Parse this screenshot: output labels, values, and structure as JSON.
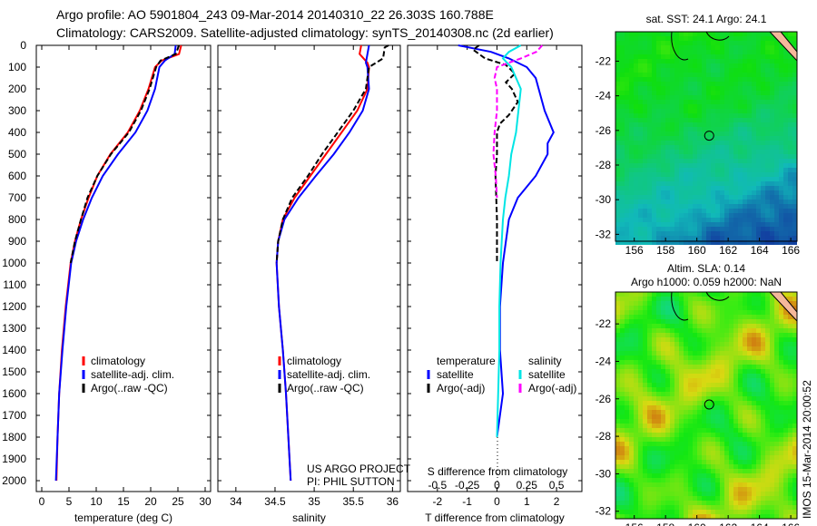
{
  "title_line1": "Argo profile: AO 5901804_243 09-Mar-2014 20140310_22 26.303S 160.788E",
  "title_line2": "Climatology: CARS2009. Satellite-adjusted climatology: synTS_20140308.nc (2d earlier)",
  "credit_line1": "US ARGO PROJECT",
  "credit_line2": "PI: PHIL SUTTON",
  "timestamp": "IMOS 15-Mar-2014 20:00:52",
  "colors": {
    "climatology": "#ff0000",
    "satellite": "#0000ff",
    "argo": "#000000",
    "sal_satellite": "#00e5e5",
    "sal_argo": "#ff00ff"
  },
  "chart_data": [
    {
      "type": "line",
      "xlabel": "temperature (deg C)",
      "ylabel": "",
      "xlim": [
        -1,
        31
      ],
      "ylim": [
        2050,
        0
      ],
      "xticks": [
        "0",
        "5",
        "10",
        "15",
        "20",
        "25",
        "30"
      ],
      "yticks": [
        "0",
        "100",
        "200",
        "300",
        "400",
        "500",
        "600",
        "700",
        "800",
        "900",
        "1000",
        "1100",
        "1200",
        "1300",
        "1400",
        "1500",
        "1600",
        "1700",
        "1800",
        "1900",
        "2000"
      ],
      "legend": [
        "climatology",
        "satellite-adj. clim.",
        "Argo(..raw -QC)"
      ],
      "series": [
        {
          "name": "climatology",
          "depth": [
            0,
            40,
            70,
            100,
            200,
            300,
            400,
            500,
            600,
            700,
            800,
            900,
            1000,
            1200,
            1400,
            1600,
            1800,
            2000
          ],
          "values": [
            25.6,
            25.2,
            22,
            20.8,
            19.6,
            18,
            15.8,
            12.6,
            10.2,
            8.6,
            7.2,
            6.1,
            5.3,
            4.4,
            3.7,
            3.2,
            2.9,
            2.7
          ]
        },
        {
          "name": "satellite-adj. clim.",
          "depth": [
            0,
            40,
            70,
            100,
            200,
            300,
            400,
            500,
            600,
            700,
            800,
            900,
            1000,
            1200,
            1400,
            1600,
            1800,
            2000
          ],
          "values": [
            24.6,
            24.4,
            22.6,
            21.6,
            20.8,
            19.4,
            17.2,
            14,
            11.2,
            9.2,
            7.6,
            6.3,
            5.4,
            4.5,
            3.8,
            3.2,
            2.9,
            2.6
          ]
        },
        {
          "name": "Argo(..raw -QC)",
          "depth": [
            0,
            40,
            70,
            100,
            200,
            300,
            400,
            500,
            600,
            700,
            800,
            900,
            1000
          ],
          "values": [
            25.2,
            24.6,
            21.8,
            21,
            19.8,
            18.2,
            16,
            12.7,
            10.2,
            8.4,
            7.2,
            6.1,
            5.3
          ]
        }
      ]
    },
    {
      "type": "line",
      "xlabel": "salinity",
      "xlim": [
        33.6,
        36.1
      ],
      "ylim": [
        2050,
        0
      ],
      "xticks": [
        "34",
        "34.5",
        "35",
        "35.5",
        "36"
      ],
      "legend": [
        "climatology",
        "satellite-adj. clim.",
        "Argo(..raw -QC)"
      ],
      "series": [
        {
          "name": "climatology",
          "depth": [
            0,
            40,
            80,
            100,
            200,
            300,
            400,
            500,
            600,
            700,
            800,
            900,
            1000,
            1200,
            1400,
            1600,
            1800,
            2000
          ],
          "values": [
            35.6,
            35.58,
            35.68,
            35.7,
            35.68,
            35.55,
            35.35,
            35.15,
            34.95,
            34.75,
            34.6,
            34.54,
            34.52,
            34.55,
            34.6,
            34.64,
            34.67,
            34.7
          ]
        },
        {
          "name": "satellite-adj. clim.",
          "depth": [
            0,
            40,
            80,
            100,
            200,
            300,
            400,
            500,
            600,
            700,
            800,
            900,
            1000,
            1200,
            1400,
            1600,
            1800,
            2000
          ],
          "values": [
            35.7,
            35.68,
            35.66,
            35.68,
            35.7,
            35.62,
            35.45,
            35.25,
            35.02,
            34.8,
            34.62,
            34.54,
            34.52,
            34.55,
            34.6,
            34.64,
            34.67,
            34.7
          ]
        },
        {
          "name": "Argo(..raw -QC)",
          "depth": [
            0,
            10,
            60,
            100,
            200,
            300,
            400,
            500,
            600,
            700,
            800,
            900,
            1000
          ],
          "values": [
            35.95,
            35.9,
            35.88,
            35.7,
            35.66,
            35.5,
            35.3,
            35.1,
            34.92,
            34.72,
            34.6,
            34.54,
            34.52
          ]
        }
      ]
    },
    {
      "type": "line",
      "xlabel": "T difference from climatology",
      "x2label": "S difference from climatology",
      "xlim": [
        -3,
        3
      ],
      "ylim": [
        2050,
        0
      ],
      "xticks": [
        "-2",
        "-1",
        "0",
        "1",
        "2"
      ],
      "x2ticks": [
        "-0.5",
        "-0.25",
        "0",
        "0.25",
        "0.5"
      ],
      "legend_temperature": "temperature",
      "legend_salinity": "salinity",
      "legend": [
        "satellite",
        "Argo(-adj)",
        "satellite",
        "Argo(-adj)"
      ],
      "series": [
        {
          "name": "T satellite",
          "depth": [
            0,
            30,
            60,
            100,
            150,
            200,
            300,
            400,
            450,
            500,
            600,
            700,
            800,
            900,
            1000,
            1200,
            1400,
            1500,
            1600,
            1700,
            1800
          ],
          "values": [
            -1.3,
            -0.2,
            0.4,
            1.0,
            1.3,
            1.4,
            1.6,
            1.9,
            1.7,
            1.7,
            1.3,
            0.7,
            0.4,
            0.3,
            0.2,
            0.1,
            0.1,
            0.15,
            0.2,
            0.1,
            0
          ]
        },
        {
          "name": "T Argo(-adj)",
          "depth": [
            0,
            20,
            60,
            90,
            130,
            170,
            200,
            260,
            320,
            360,
            400,
            500,
            600,
            800,
            1000
          ],
          "values": [
            -0.6,
            -0.8,
            -0.4,
            0.3,
            0.6,
            0.3,
            0.5,
            0.7,
            0.4,
            0.1,
            0.0,
            0.0,
            -0.05,
            0,
            0
          ]
        },
        {
          "name": "S satellite",
          "depth": [
            0,
            30,
            60,
            100,
            200,
            300,
            400,
            500,
            600,
            700,
            800,
            1000,
            1200,
            1400,
            1600,
            1800
          ],
          "values": [
            0.2,
            0.1,
            0.05,
            0.12,
            0.2,
            0.18,
            0.16,
            0.12,
            0.1,
            0.07,
            0.05,
            0.03,
            0.02,
            0.02,
            0.01,
            0
          ]
        },
        {
          "name": "S Argo(-adj)",
          "depth": [
            0,
            30,
            60,
            100,
            150,
            200,
            300,
            400,
            500,
            600,
            700
          ],
          "values": [
            0.38,
            0.33,
            0.2,
            0.0,
            -0.02,
            0.0,
            0.0,
            -0.02,
            -0.03,
            -0.01,
            0
          ]
        }
      ]
    },
    {
      "type": "heatmap",
      "title": "sat. SST: 24.1  Argo: 24.1",
      "xlim": [
        154.8,
        166.4
      ],
      "ylim": [
        -32.4,
        -20.3
      ],
      "xticks": [
        "156",
        "158",
        "160",
        "162",
        "164",
        "166"
      ],
      "yticks": [
        "-22",
        "-24",
        "-26",
        "-28",
        "-30",
        "-32"
      ],
      "marker": {
        "lon": 160.788,
        "lat": -26.303
      }
    },
    {
      "type": "heatmap",
      "title": "Altim. SLA: 0.14",
      "subtitle": "Argo h1000: 0.059 h2000: NaN",
      "xlim": [
        154.8,
        166.4
      ],
      "ylim": [
        -32.4,
        -20.3
      ],
      "xticks": [
        "156",
        "158",
        "160",
        "162",
        "164",
        "166"
      ],
      "yticks": [
        "-22",
        "-24",
        "-26",
        "-28",
        "-30",
        "-32"
      ],
      "marker": {
        "lon": 160.788,
        "lat": -26.303
      }
    }
  ]
}
